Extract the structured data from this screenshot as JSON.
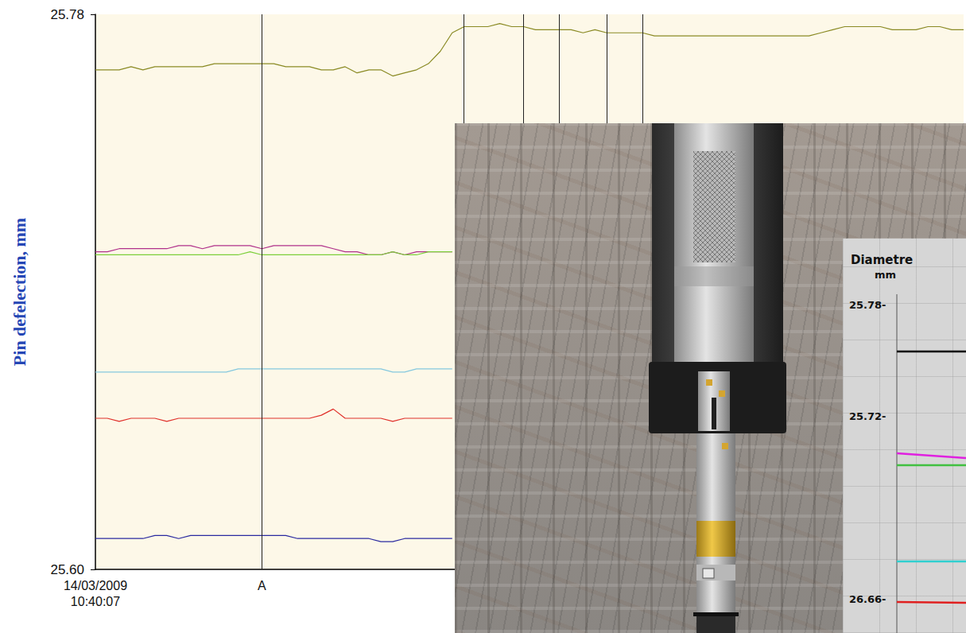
{
  "chart_data": {
    "type": "line",
    "y_label": "Pin defelection, mm",
    "categories": [
      "14/03/2009 10:40:07",
      null,
      null,
      null,
      null,
      null,
      null,
      null,
      null,
      null,
      null,
      null,
      null,
      null,
      "A",
      null,
      null,
      null,
      null,
      null,
      null,
      null,
      null,
      null,
      null,
      null,
      null,
      null,
      null,
      null,
      null,
      null,
      null,
      null,
      null,
      null,
      null,
      null,
      null,
      null,
      null,
      null,
      null,
      null,
      null,
      null,
      null,
      null,
      null,
      null,
      null,
      null,
      null,
      null,
      null,
      null,
      null,
      null,
      null,
      null,
      null,
      null,
      null,
      null,
      null,
      null,
      null,
      null,
      null,
      null,
      null,
      null,
      null,
      null
    ],
    "series": [
      {
        "color": "#8a8a24",
        "values": [
          25.762,
          25.762,
          25.762,
          25.763,
          25.762,
          25.763,
          25.763,
          25.763,
          25.763,
          25.763,
          25.764,
          25.764,
          25.764,
          25.764,
          25.764,
          25.764,
          25.763,
          25.763,
          25.763,
          25.762,
          25.762,
          25.763,
          25.761,
          25.762,
          25.762,
          25.76,
          25.761,
          25.762,
          25.764,
          25.768,
          25.774,
          25.776,
          25.776,
          25.776,
          25.777,
          25.776,
          25.776,
          25.775,
          25.775,
          25.775,
          25.775,
          25.774,
          25.775,
          25.774,
          25.774,
          25.774,
          25.774,
          25.773,
          25.773,
          25.773,
          25.773,
          25.773,
          25.773,
          25.773,
          25.773,
          25.773,
          25.773,
          25.773,
          25.773,
          25.773,
          25.773,
          25.774,
          25.775,
          25.776,
          25.776,
          25.776,
          25.776,
          25.775,
          25.775,
          25.775,
          25.776,
          25.776,
          25.775,
          25.775
        ]
      },
      {
        "color": "#b0308a",
        "values": [
          25.703,
          25.703,
          25.704,
          25.704,
          25.704,
          25.704,
          25.704,
          25.705,
          25.705,
          25.704,
          25.705,
          25.705,
          25.705,
          25.705,
          25.704,
          25.705,
          25.705,
          25.705,
          25.705,
          25.705,
          25.704,
          25.703,
          25.703,
          25.702,
          25.702,
          25.703,
          25.702,
          25.703,
          25.703,
          25.703,
          25.703,
          null,
          null,
          null,
          null,
          null,
          null,
          null,
          null,
          null,
          null,
          null,
          null,
          null,
          null,
          null,
          null,
          null,
          null,
          null,
          null,
          null,
          null,
          null,
          null,
          null,
          null,
          null,
          null,
          null,
          null,
          null,
          null,
          null,
          null,
          null,
          null,
          null,
          null,
          null,
          null,
          null,
          null,
          null
        ]
      },
      {
        "color": "#7ccf3a",
        "values": [
          25.702,
          25.702,
          25.702,
          25.702,
          25.702,
          25.702,
          25.702,
          25.702,
          25.702,
          25.702,
          25.702,
          25.702,
          25.702,
          25.703,
          25.702,
          25.702,
          25.702,
          25.702,
          25.702,
          25.702,
          25.702,
          25.702,
          25.702,
          25.702,
          25.702,
          25.703,
          25.702,
          25.702,
          25.703,
          25.703,
          25.703,
          null,
          null,
          null,
          null,
          null,
          null,
          null,
          null,
          null,
          null,
          null,
          null,
          null,
          null,
          null,
          null,
          null,
          null,
          null,
          null,
          null,
          null,
          null,
          null,
          null,
          null,
          null,
          null,
          null,
          null,
          null,
          null,
          null,
          null,
          null,
          null,
          null,
          null,
          null,
          null,
          null,
          null,
          null
        ]
      },
      {
        "color": "#84c8de",
        "values": [
          25.664,
          25.664,
          25.664,
          25.664,
          25.664,
          25.664,
          25.664,
          25.664,
          25.664,
          25.664,
          25.664,
          25.664,
          25.665,
          25.665,
          25.665,
          25.665,
          25.665,
          25.665,
          25.665,
          25.665,
          25.665,
          25.665,
          25.665,
          25.665,
          25.665,
          25.664,
          25.664,
          25.665,
          25.665,
          25.665,
          25.665,
          null,
          null,
          null,
          null,
          null,
          null,
          null,
          null,
          null,
          null,
          null,
          null,
          null,
          null,
          null,
          null,
          null,
          null,
          null,
          null,
          null,
          null,
          null,
          null,
          null,
          null,
          null,
          null,
          null,
          null,
          null,
          null,
          null,
          null,
          null,
          null,
          null,
          null,
          null,
          null,
          null,
          null,
          null
        ]
      },
      {
        "color": "#e0302a",
        "values": [
          25.649,
          25.649,
          25.648,
          25.649,
          25.649,
          25.649,
          25.648,
          25.649,
          25.649,
          25.649,
          25.649,
          25.649,
          25.649,
          25.649,
          25.649,
          25.649,
          25.649,
          25.649,
          25.649,
          25.65,
          25.652,
          25.649,
          25.649,
          25.649,
          25.649,
          25.648,
          25.649,
          25.649,
          25.649,
          25.649,
          25.649,
          null,
          null,
          null,
          null,
          null,
          null,
          null,
          null,
          null,
          null,
          null,
          null,
          null,
          null,
          null,
          null,
          null,
          null,
          null,
          null,
          null,
          null,
          null,
          null,
          null,
          null,
          null,
          null,
          null,
          null,
          null,
          null,
          null,
          null,
          null,
          null,
          null,
          null,
          null,
          null,
          null,
          null,
          null
        ]
      },
      {
        "color": "#2a2aa0",
        "values": [
          25.61,
          25.61,
          25.61,
          25.61,
          25.61,
          25.611,
          25.611,
          25.61,
          25.611,
          25.611,
          25.611,
          25.611,
          25.611,
          25.611,
          25.611,
          25.611,
          25.611,
          25.61,
          25.61,
          25.61,
          25.61,
          25.61,
          25.61,
          25.61,
          25.609,
          25.609,
          25.61,
          25.61,
          25.61,
          25.61,
          25.61,
          null,
          null,
          null,
          null,
          null,
          null,
          null,
          null,
          null,
          null,
          null,
          null,
          null,
          null,
          null,
          null,
          null,
          null,
          null,
          null,
          null,
          null,
          null,
          null,
          null,
          null,
          null,
          null,
          null,
          null,
          null,
          null,
          null,
          null,
          null,
          null,
          null,
          null,
          null,
          null,
          null,
          null,
          null
        ]
      }
    ],
    "vertical_lines": [
      14,
      31,
      36,
      39,
      43,
      46
    ],
    "ylim": [
      25.6,
      25.78
    ],
    "yticks": [
      {
        "value": 25.6,
        "label": "25.60"
      },
      {
        "value": 25.78,
        "label": "25.78"
      }
    ],
    "grid": false
  },
  "inset": {
    "title": "Diametre",
    "unit": "mm",
    "tick_labels": [
      "25.78-",
      "25.72-",
      "26.66-"
    ],
    "line_colors": [
      "#000000",
      "#e020e0",
      "#40c040",
      "#30d0d0",
      "#e02020"
    ]
  }
}
